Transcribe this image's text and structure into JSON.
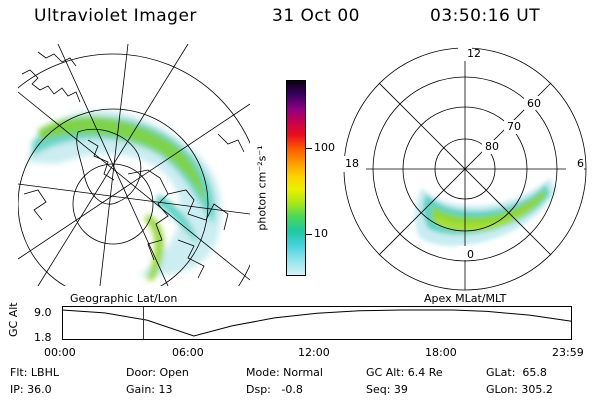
{
  "header": {
    "title": "Ultraviolet Imager",
    "date": "31 Oct 00",
    "time": "03:50:16 UT"
  },
  "colorbar": {
    "unit_label": "photon cm⁻²s⁻¹",
    "ticks": [
      "100",
      "10"
    ],
    "colors": [
      "#0a0010",
      "#3a0060",
      "#8a0080",
      "#c80050",
      "#e8101c",
      "#ff5a00",
      "#ff9a00",
      "#ffd200",
      "#e8f000",
      "#a8e61a",
      "#4ad85a",
      "#20c8a0",
      "#40d0d8",
      "#90e4ec",
      "#d6f2f6"
    ]
  },
  "left_map": {
    "caption": "Geographic Lat/Lon"
  },
  "right_map": {
    "caption": "Apex MLat/MLT",
    "hour_labels": [
      "12",
      "18",
      "6",
      "0"
    ],
    "lat_labels": [
      "60",
      "70",
      "80"
    ]
  },
  "timeline": {
    "axis_title": "GC Alt",
    "y_ticks": [
      "9.0",
      "1.8"
    ],
    "x_ticks": [
      "00:00",
      "06:00",
      "12:00",
      "18:00",
      "23:59"
    ],
    "marker_time": "03:50",
    "marker_color": "#c00000",
    "curve": {
      "x_hours": [
        0,
        2,
        4,
        6.2,
        8,
        10,
        12,
        14,
        16,
        18.4,
        20,
        22,
        23.98
      ],
      "y_re": [
        9.0,
        8.2,
        6.2,
        1.8,
        4.6,
        6.8,
        8.1,
        8.8,
        9.0,
        9.0,
        8.6,
        7.6,
        5.9
      ]
    }
  },
  "info": {
    "flt": "Flt: LBHL",
    "door": "Door: Open",
    "mode": "Mode: Normal",
    "gc_alt": "GC Alt: 6.4 Re",
    "glat": "GLat:  65.8",
    "ip": "IP: 36.0",
    "gain": "Gain: 13",
    "dsp": "Dsp:   -0.8",
    "seq": "Seq: 39",
    "glon": "GLon: 305.2"
  }
}
